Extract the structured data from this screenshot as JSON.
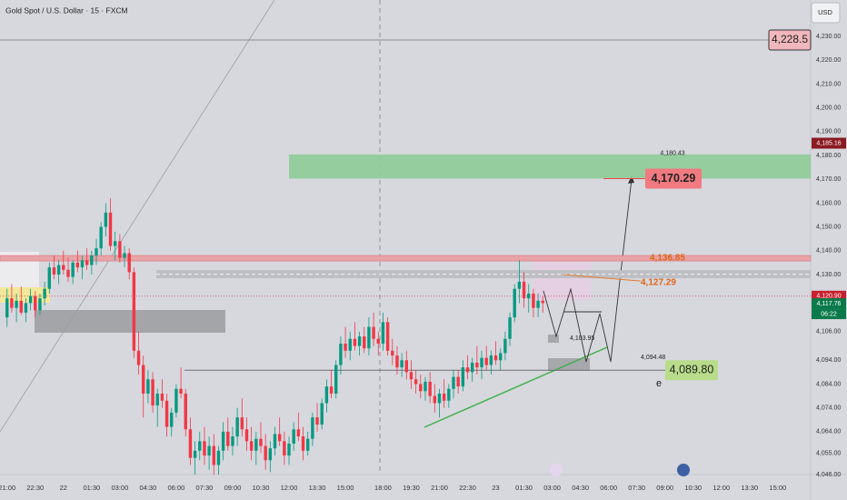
{
  "header": {
    "symbol": "Gold Spot / U.S. Dollar · 15 · FXCM",
    "currency": "USD",
    "countdown": "06:22"
  },
  "chart_data": {
    "type": "candlestick",
    "colors": {
      "up": "#089981",
      "down": "#f23645"
    },
    "ylim": [
      4046,
      4245.3
    ],
    "xlim": [
      -1.5,
      171
    ],
    "yticks": [
      {
        "value": 4230,
        "label": "4,230.00"
      },
      {
        "value": 4220,
        "label": "4,220.00"
      },
      {
        "value": 4210,
        "label": "4,210.00"
      },
      {
        "value": 4200,
        "label": "4,200.00"
      },
      {
        "value": 4190,
        "label": "4,190.00"
      },
      {
        "value": 4180,
        "label": "4,180.00"
      },
      {
        "value": 4170,
        "label": "4,170.00"
      },
      {
        "value": 4160,
        "label": "4,160.00"
      },
      {
        "value": 4150,
        "label": "4,150.00"
      },
      {
        "value": 4140,
        "label": "4,140.00"
      },
      {
        "value": 4130,
        "label": "4,130.00"
      },
      {
        "value": 4106,
        "label": "4,106.00"
      },
      {
        "value": 4094,
        "label": "4,094.00"
      },
      {
        "value": 4084,
        "label": "4,084.00"
      },
      {
        "value": 4074,
        "label": "4,074.00"
      },
      {
        "value": 4064,
        "label": "4,064.00"
      },
      {
        "value": 4055,
        "label": "4,055.00"
      },
      {
        "value": 4046,
        "label": "4,046.00"
      }
    ],
    "xticks": [
      {
        "value": 0,
        "label": "21:00"
      },
      {
        "value": 6,
        "label": "22:30"
      },
      {
        "value": 12,
        "label": "22"
      },
      {
        "value": 18,
        "label": "01:30"
      },
      {
        "value": 24,
        "label": "03:00"
      },
      {
        "value": 30,
        "label": "04:30"
      },
      {
        "value": 36,
        "label": "06:00"
      },
      {
        "value": 42,
        "label": "07:30"
      },
      {
        "value": 48,
        "label": "09:00"
      },
      {
        "value": 54,
        "label": "10:30"
      },
      {
        "value": 60,
        "label": "12:00"
      },
      {
        "value": 66,
        "label": "13:30"
      },
      {
        "value": 72,
        "label": "15:00"
      },
      {
        "value": 80,
        "label": "18:00"
      },
      {
        "value": 86,
        "label": "19:30"
      },
      {
        "value": 92,
        "label": "21:00"
      },
      {
        "value": 98,
        "label": "22:30"
      },
      {
        "value": 104,
        "label": "23"
      },
      {
        "value": 110,
        "label": "01:30"
      },
      {
        "value": 116,
        "label": "03:00"
      },
      {
        "value": 122,
        "label": "04:30"
      },
      {
        "value": 128,
        "label": "06:00"
      },
      {
        "value": 134,
        "label": "07:30"
      },
      {
        "value": 140,
        "label": "09:00"
      },
      {
        "value": 146,
        "label": "10:30"
      },
      {
        "value": 152,
        "label": "12:00"
      },
      {
        "value": 158,
        "label": "13:30"
      },
      {
        "value": 164,
        "label": "15:00"
      }
    ],
    "candles": [
      [
        4112,
        4124,
        4108,
        4120
      ],
      [
        4120,
        4126,
        4114,
        4116
      ],
      [
        4116,
        4122,
        4110,
        4119
      ],
      [
        4119,
        4125,
        4113,
        4114
      ],
      [
        4114,
        4120,
        4110,
        4118
      ],
      [
        4118,
        4124,
        4115,
        4121
      ],
      [
        4121,
        4123,
        4112,
        4115
      ],
      [
        4115,
        4122,
        4113,
        4120
      ],
      [
        4120,
        4127,
        4117,
        4124
      ],
      [
        4124,
        4135,
        4122,
        4133
      ],
      [
        4133,
        4138,
        4128,
        4130
      ],
      [
        4130,
        4136,
        4126,
        4134
      ],
      [
        4134,
        4140,
        4130,
        4132
      ],
      [
        4132,
        4137,
        4127,
        4129
      ],
      [
        4129,
        4136,
        4126,
        4135
      ],
      [
        4135,
        4140,
        4131,
        4133
      ],
      [
        4133,
        4138,
        4128,
        4136
      ],
      [
        4136,
        4141,
        4132,
        4134
      ],
      [
        4134,
        4140,
        4130,
        4138
      ],
      [
        4138,
        4145,
        4134,
        4141
      ],
      [
        4141,
        4152,
        4138,
        4150
      ],
      [
        4150,
        4160,
        4146,
        4156
      ],
      [
        4156,
        4162,
        4140,
        4142
      ],
      [
        4142,
        4148,
        4136,
        4144
      ],
      [
        4144,
        4147,
        4135,
        4137
      ],
      [
        4137,
        4142,
        4133,
        4139
      ],
      [
        4139,
        4141,
        4128,
        4131
      ],
      [
        4131,
        4133,
        4095,
        4098
      ],
      [
        4098,
        4106,
        4088,
        4092
      ],
      [
        4092,
        4096,
        4070,
        4080
      ],
      [
        4080,
        4090,
        4076,
        4086
      ],
      [
        4086,
        4089,
        4072,
        4075
      ],
      [
        4075,
        4082,
        4066,
        4080
      ],
      [
        4080,
        4086,
        4074,
        4077
      ],
      [
        4077,
        4080,
        4062,
        4066
      ],
      [
        4066,
        4074,
        4062,
        4072
      ],
      [
        4072,
        4084,
        4070,
        4082
      ],
      [
        4082,
        4091,
        4078,
        4080
      ],
      [
        4080,
        4082,
        4062,
        4065
      ],
      [
        4065,
        4070,
        4050,
        4053
      ],
      [
        4053,
        4060,
        4046,
        4056
      ],
      [
        4056,
        4064,
        4052,
        4060
      ],
      [
        4060,
        4066,
        4050,
        4054
      ],
      [
        4054,
        4062,
        4048,
        4058
      ],
      [
        4058,
        4063,
        4046,
        4050
      ],
      [
        4050,
        4058,
        4046,
        4056
      ],
      [
        4056,
        4068,
        4052,
        4064
      ],
      [
        4064,
        4070,
        4056,
        4058
      ],
      [
        4058,
        4066,
        4054,
        4062
      ],
      [
        4062,
        4074,
        4058,
        4070
      ],
      [
        4070,
        4078,
        4062,
        4065
      ],
      [
        4065,
        4070,
        4056,
        4060
      ],
      [
        4060,
        4066,
        4052,
        4056
      ],
      [
        4056,
        4064,
        4050,
        4061
      ],
      [
        4061,
        4068,
        4055,
        4058
      ],
      [
        4058,
        4063,
        4048,
        4052
      ],
      [
        4052,
        4060,
        4047,
        4057
      ],
      [
        4057,
        4066,
        4054,
        4063
      ],
      [
        4063,
        4070,
        4058,
        4060
      ],
      [
        4060,
        4064,
        4050,
        4054
      ],
      [
        4054,
        4062,
        4050,
        4059
      ],
      [
        4059,
        4068,
        4056,
        4065
      ],
      [
        4065,
        4072,
        4060,
        4062
      ],
      [
        4062,
        4066,
        4052,
        4056
      ],
      [
        4056,
        4064,
        4054,
        4061
      ],
      [
        4061,
        4072,
        4058,
        4070
      ],
      [
        4070,
        4076,
        4064,
        4067
      ],
      [
        4067,
        4078,
        4065,
        4076
      ],
      [
        4076,
        4086,
        4072,
        4083
      ],
      [
        4083,
        4090,
        4078,
        4080
      ],
      [
        4080,
        4094,
        4078,
        4092
      ],
      [
        4092,
        4104,
        4088,
        4101
      ],
      [
        4101,
        4108,
        4095,
        4098
      ],
      [
        4098,
        4106,
        4094,
        4103
      ],
      [
        4103,
        4110,
        4098,
        4100
      ],
      [
        4100,
        4106,
        4096,
        4104
      ],
      [
        4104,
        4108,
        4097,
        4099
      ],
      [
        4099,
        4112,
        4096,
        4108
      ],
      [
        4108,
        4114,
        4100,
        4103
      ],
      [
        4103,
        4106,
        4096,
        4101
      ],
      [
        4101,
        4114,
        4098,
        4110
      ],
      [
        4110,
        4112,
        4096,
        4098
      ],
      [
        4098,
        4103,
        4092,
        4096
      ],
      [
        4096,
        4100,
        4088,
        4091
      ],
      [
        4091,
        4097,
        4087,
        4094
      ],
      [
        4094,
        4098,
        4086,
        4089
      ],
      [
        4089,
        4094,
        4082,
        4086
      ],
      [
        4086,
        4090,
        4080,
        4084
      ],
      [
        4084,
        4088,
        4078,
        4081
      ],
      [
        4081,
        4087,
        4077,
        4085
      ],
      [
        4085,
        4089,
        4076,
        4079
      ],
      [
        4079,
        4084,
        4072,
        4076
      ],
      [
        4076,
        4082,
        4070,
        4080
      ],
      [
        4080,
        4086,
        4074,
        4077
      ],
      [
        4077,
        4084,
        4074,
        4082
      ],
      [
        4082,
        4090,
        4078,
        4087
      ],
      [
        4087,
        4090,
        4080,
        4083
      ],
      [
        4083,
        4094,
        4081,
        4091
      ],
      [
        4091,
        4096,
        4086,
        4089
      ],
      [
        4089,
        4095,
        4085,
        4093
      ],
      [
        4093,
        4100,
        4088,
        4091
      ],
      [
        4091,
        4098,
        4086,
        4095
      ],
      [
        4095,
        4100,
        4090,
        4092
      ],
      [
        4092,
        4098,
        4088,
        4096
      ],
      [
        4096,
        4102,
        4092,
        4094
      ],
      [
        4094,
        4099,
        4090,
        4097
      ],
      [
        4097,
        4106,
        4094,
        4103
      ],
      [
        4103,
        4114,
        4100,
        4112
      ],
      [
        4112,
        4126,
        4110,
        4124
      ],
      [
        4124,
        4136,
        4118,
        4127
      ],
      [
        4127,
        4131,
        4116,
        4120
      ],
      [
        4120,
        4126,
        4114,
        4122
      ],
      [
        4122,
        4124,
        4112,
        4116
      ],
      [
        4116,
        4122,
        4112,
        4119
      ],
      [
        4119,
        4121,
        4114,
        4118
      ]
    ],
    "axis_labels": [
      {
        "value": 4185.16,
        "label": "4,185.16",
        "color": "#8b1a22"
      },
      {
        "value": 4120.9,
        "label": "4,120.90",
        "color": "#c8202e"
      },
      {
        "value": 4117.76,
        "label": "4,117.76",
        "color": "#0b7a4a"
      }
    ],
    "levels": {
      "high": {
        "value": 4228.5,
        "label": "4,228.5"
      },
      "zone_top": {
        "value": 4180.43,
        "label": "4,180.43"
      },
      "target": {
        "value": 4170.29,
        "label": "4,170.29"
      },
      "resistance": {
        "value": 4136.85,
        "label": "4,136.85"
      },
      "mid": {
        "value": 4127.29,
        "label": "4,127.29"
      },
      "swing": {
        "value": 4103.95,
        "label": "4,103.95"
      },
      "support_top": {
        "value": 4094.48,
        "label": "4,094.48"
      },
      "support": {
        "value": 4089.8,
        "label": "4,089.80"
      }
    },
    "note": "e"
  }
}
